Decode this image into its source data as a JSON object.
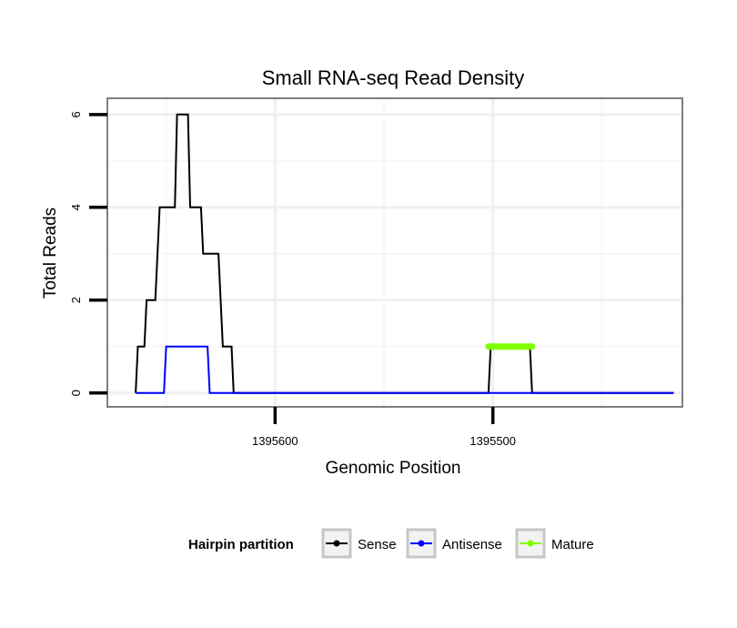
{
  "chart_data": {
    "type": "line",
    "title": "Small RNA-seq Read Density",
    "xlabel": "Genomic Position",
    "ylabel": "Total Reads",
    "x_reversed": true,
    "xlim": [
      1395677,
      1395413
    ],
    "ylim": [
      -0.3,
      6.35
    ],
    "x_ticks": [
      1395600,
      1395500
    ],
    "x_tick_labels": [
      "1395600",
      "1395500"
    ],
    "y_ticks": [
      0,
      2,
      4,
      6
    ],
    "y_tick_labels": [
      "0",
      "2",
      "4",
      "6"
    ],
    "minor_x_gridlines": [
      1395650,
      1395550,
      1395450
    ],
    "minor_y_gridlines": [
      1,
      3,
      5
    ],
    "legend": {
      "title": "Hairpin partition",
      "position": "bottom",
      "entries": [
        "Sense",
        "Antisense",
        "Mature"
      ]
    },
    "series": [
      {
        "name": "Sense",
        "color": "#000000",
        "points": [
          [
            1395664,
            0
          ],
          [
            1395663,
            1
          ],
          [
            1395660,
            1
          ],
          [
            1395659,
            2
          ],
          [
            1395655,
            2
          ],
          [
            1395654,
            3
          ],
          [
            1395653,
            4
          ],
          [
            1395646,
            4
          ],
          [
            1395645,
            6
          ],
          [
            1395640,
            6
          ],
          [
            1395639,
            4
          ],
          [
            1395634,
            4
          ],
          [
            1395633,
            3
          ],
          [
            1395626,
            3
          ],
          [
            1395625,
            2
          ],
          [
            1395624,
            1
          ],
          [
            1395620,
            1
          ],
          [
            1395619,
            0
          ],
          [
            1395502,
            0
          ],
          [
            1395501,
            1
          ],
          [
            1395483,
            1
          ],
          [
            1395482,
            0
          ],
          [
            1395417,
            0
          ]
        ]
      },
      {
        "name": "Antisense",
        "color": "#0000ff",
        "points": [
          [
            1395664,
            0
          ],
          [
            1395651,
            0
          ],
          [
            1395650,
            1
          ],
          [
            1395631,
            1
          ],
          [
            1395630,
            0
          ],
          [
            1395417,
            0
          ]
        ]
      },
      {
        "name": "Mature",
        "color": "#7fff00",
        "points": [
          [
            1395502,
            1
          ],
          [
            1395482,
            1
          ]
        ]
      }
    ]
  }
}
